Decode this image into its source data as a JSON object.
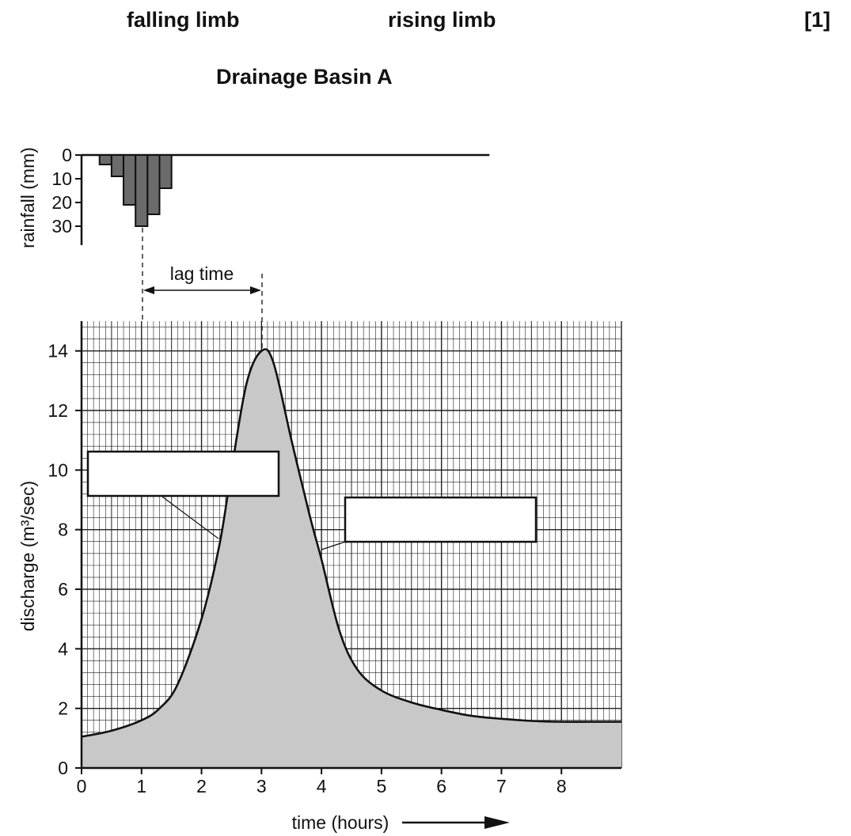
{
  "header": {
    "word1": "falling limb",
    "word2": "rising limb",
    "marks": "[1]"
  },
  "figure_title": "Drainage Basin A",
  "lag_label": "lag time",
  "chart_data": [
    {
      "type": "bar",
      "ylabel": "rainfall (mm)",
      "yticks": [
        0,
        10,
        20,
        30
      ],
      "ylim": [
        0,
        38
      ],
      "x_axis_extent_hours": [
        0,
        6.8
      ],
      "bar_width_hours": 0.2,
      "bars": [
        {
          "start": 0.3,
          "value": 4
        },
        {
          "start": 0.5,
          "value": 9
        },
        {
          "start": 0.7,
          "value": 21
        },
        {
          "start": 0.9,
          "value": 30
        },
        {
          "start": 1.1,
          "value": 25
        },
        {
          "start": 1.3,
          "value": 14
        }
      ],
      "bar_color": "#6b6b6b"
    },
    {
      "type": "area",
      "title": "Drainage Basin A",
      "xlabel": "time (hours)",
      "ylabel": "discharge (m³/sec)",
      "xlim": [
        0,
        9
      ],
      "ylim": [
        0,
        15
      ],
      "xticks": [
        0,
        1,
        2,
        3,
        4,
        5,
        6,
        7,
        8
      ],
      "yticks": [
        0,
        2,
        4,
        6,
        8,
        10,
        12,
        14
      ],
      "grid": true,
      "fill_color": "#c8c8c8",
      "x": [
        0,
        0.5,
        1.0,
        1.3,
        1.6,
        2.0,
        2.3,
        2.5,
        2.75,
        3.0,
        3.2,
        3.5,
        3.8,
        4.0,
        4.3,
        4.6,
        5.0,
        5.5,
        6.0,
        6.5,
        7.0,
        7.5,
        8.0,
        8.5,
        9.0
      ],
      "y": [
        1.05,
        1.25,
        1.6,
        2.0,
        2.8,
        5.0,
        7.5,
        10.0,
        12.9,
        14.0,
        13.6,
        11.0,
        8.5,
        7.0,
        4.6,
        3.3,
        2.6,
        2.2,
        1.95,
        1.75,
        1.65,
        1.58,
        1.55,
        1.55,
        1.55
      ],
      "peak": {
        "x": 3.0,
        "y": 14.0
      },
      "rain_peak_x": 1.0,
      "lag_hours": 2
    }
  ]
}
